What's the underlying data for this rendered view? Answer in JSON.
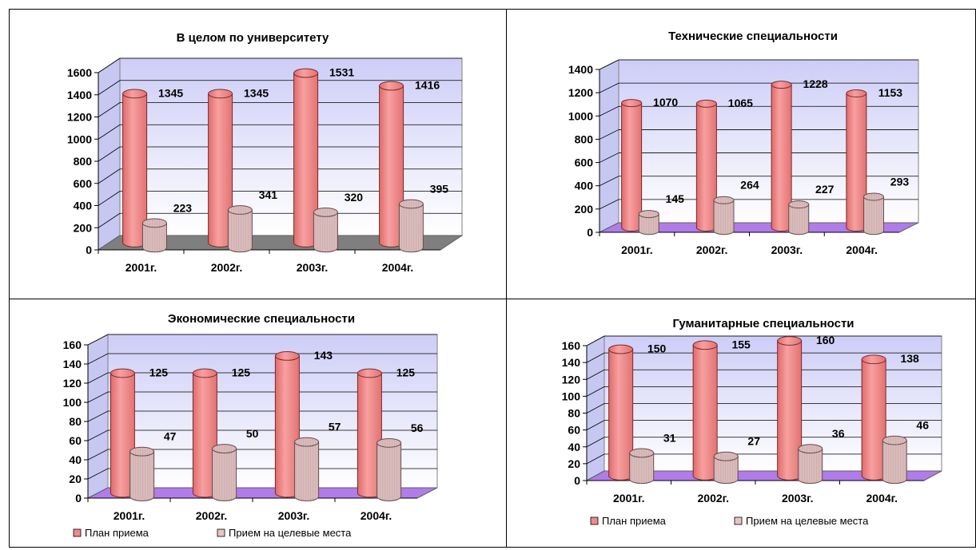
{
  "colors": {
    "plan": "#f08a8a",
    "target": "#e8c4c4",
    "wall_top": "#cfd0f8",
    "wall_bottom": "#ffffff",
    "floor_gray": "#7f7f7f",
    "floor_purple": "#b07ce8"
  },
  "legend": {
    "plan_label": "План приема",
    "target_label": "Прием на целевые места"
  },
  "chart_data": [
    {
      "type": "bar",
      "title": "В целом по университету",
      "categories": [
        "2001г.",
        "2002г.",
        "2003г.",
        "2004г."
      ],
      "series": [
        {
          "name": "План приема",
          "values": [
            1345,
            1345,
            1531,
            1416
          ]
        },
        {
          "name": "Прием на целевые места",
          "values": [
            223,
            341,
            320,
            395
          ]
        }
      ],
      "ylim": [
        0,
        1600
      ],
      "yticks": [
        "0",
        "200",
        "400",
        "600",
        "800",
        "1000",
        "1200",
        "1400",
        "1600"
      ],
      "floor": "gray",
      "legend": false
    },
    {
      "type": "bar",
      "title": "Технические специальности",
      "categories": [
        "2001г.",
        "2002г.",
        "2003г.",
        "2004г."
      ],
      "series": [
        {
          "name": "План приема",
          "values": [
            1070,
            1065,
            1228,
            1153
          ]
        },
        {
          "name": "Прием на целевые места",
          "values": [
            145,
            264,
            227,
            293
          ]
        }
      ],
      "ylim": [
        0,
        1400
      ],
      "yticks": [
        "0",
        "200",
        "400",
        "600",
        "800",
        "1000",
        "1200",
        "1400"
      ],
      "floor": "purple",
      "legend": false
    },
    {
      "type": "bar",
      "title": "Экономические специальности",
      "categories": [
        "2001г.",
        "2002г.",
        "2003г.",
        "2004г."
      ],
      "series": [
        {
          "name": "План приема",
          "values": [
            125,
            125,
            143,
            125
          ]
        },
        {
          "name": "Прием на целевые места",
          "values": [
            47,
            50,
            57,
            56
          ]
        }
      ],
      "ylim": [
        0,
        160
      ],
      "yticks": [
        "0",
        "20",
        "40",
        "60",
        "80",
        "100",
        "120",
        "140",
        "160"
      ],
      "floor": "purple",
      "legend": true
    },
    {
      "type": "bar",
      "title": "Гуманитарные специальности",
      "categories": [
        "2001г.",
        "2002г.",
        "2003г.",
        "2004г."
      ],
      "series": [
        {
          "name": "План приема",
          "values": [
            150,
            155,
            160,
            138
          ]
        },
        {
          "name": "Прием на целевые места",
          "values": [
            31,
            27,
            36,
            46
          ]
        }
      ],
      "ylim": [
        0,
        160
      ],
      "yticks": [
        "0",
        "20",
        "40",
        "60",
        "80",
        "100",
        "120",
        "140",
        "160"
      ],
      "floor": "purple",
      "legend": true
    }
  ]
}
